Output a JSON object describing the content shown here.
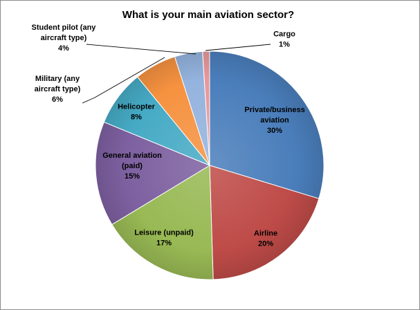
{
  "chart_data": {
    "type": "pie",
    "title": "What is your main aviation sector?",
    "slices": [
      {
        "label": "Private/business aviation",
        "lines": [
          "Private/business",
          "aviation"
        ],
        "percent_label": "30%",
        "value": 30,
        "color": "#4a7ebb"
      },
      {
        "label": "Airline",
        "lines": [
          "Airline"
        ],
        "percent_label": "20%",
        "value": 20,
        "color": "#be4b48"
      },
      {
        "label": "Leisure (unpaid)",
        "lines": [
          "Leisure (unpaid)"
        ],
        "percent_label": "17%",
        "value": 17,
        "color": "#98b954"
      },
      {
        "label": "General aviation (paid)",
        "lines": [
          "General aviation",
          "(paid)"
        ],
        "percent_label": "15%",
        "value": 15,
        "color": "#7d60a0"
      },
      {
        "label": "Helicopter",
        "lines": [
          "Helicopter"
        ],
        "percent_label": "8%",
        "value": 8,
        "color": "#46aac5"
      },
      {
        "label": "Military (any aircraft type)",
        "lines": [
          "Military (any",
          "aircraft type)"
        ],
        "percent_label": "6%",
        "value": 6,
        "color": "#f69240"
      },
      {
        "label": "Student pilot (any aircraft type)",
        "lines": [
          "Student pilot (any",
          "aircraft type)"
        ],
        "percent_label": "4%",
        "value": 4,
        "color": "#94b3de"
      },
      {
        "label": "Cargo",
        "lines": [
          "Cargo"
        ],
        "percent_label": "1%",
        "value": 1,
        "color": "#e8989a"
      }
    ]
  }
}
